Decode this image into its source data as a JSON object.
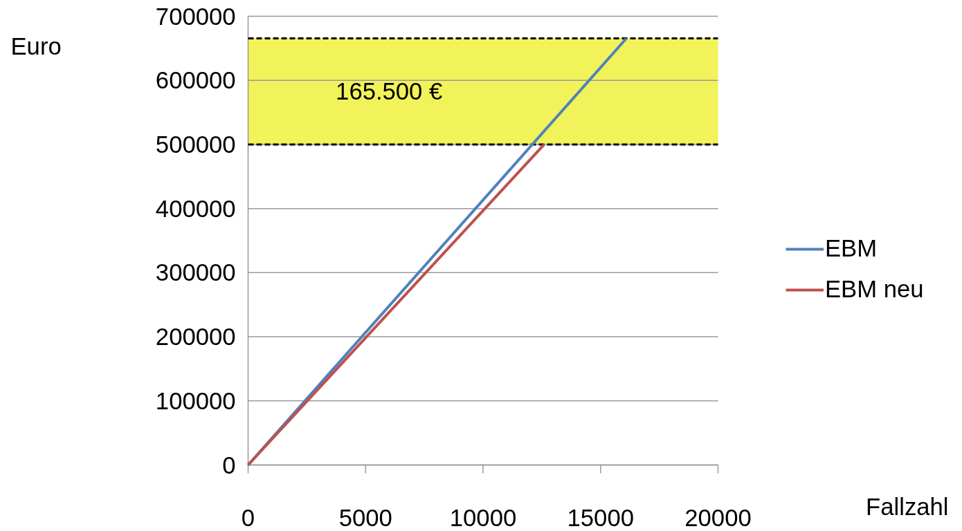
{
  "chart_data": {
    "type": "line",
    "xlabel": "Fallzahl",
    "ylabel": "Euro",
    "xlim": [
      0,
      20000
    ],
    "xticks": [
      0,
      5000,
      10000,
      15000,
      20000
    ],
    "ylim": [
      0,
      700000
    ],
    "yticks": [
      0,
      100000,
      200000,
      300000,
      400000,
      500000,
      600000,
      700000
    ],
    "series": [
      {
        "name": "EBM",
        "color": "#4f81bd",
        "x": [
          0,
          16100
        ],
        "values": [
          0,
          665500
        ]
      },
      {
        "name": "EBM neu",
        "color": "#c0504d",
        "x": [
          0,
          12600
        ],
        "values": [
          0,
          500000
        ]
      }
    ],
    "ref_lines": [
      {
        "axis": "y",
        "value": 665500,
        "line_style": "dashed",
        "color": "#000000"
      },
      {
        "axis": "y",
        "value": 500000,
        "line_style": "dashed",
        "color": "#000000"
      }
    ],
    "bands": [
      {
        "axis": "y",
        "from": 500000,
        "to": 665500,
        "label": "165.500 €",
        "color": "#f2f25a"
      }
    ],
    "grid": "y",
    "legend": "right",
    "marker": "none",
    "line_style": "solid"
  }
}
